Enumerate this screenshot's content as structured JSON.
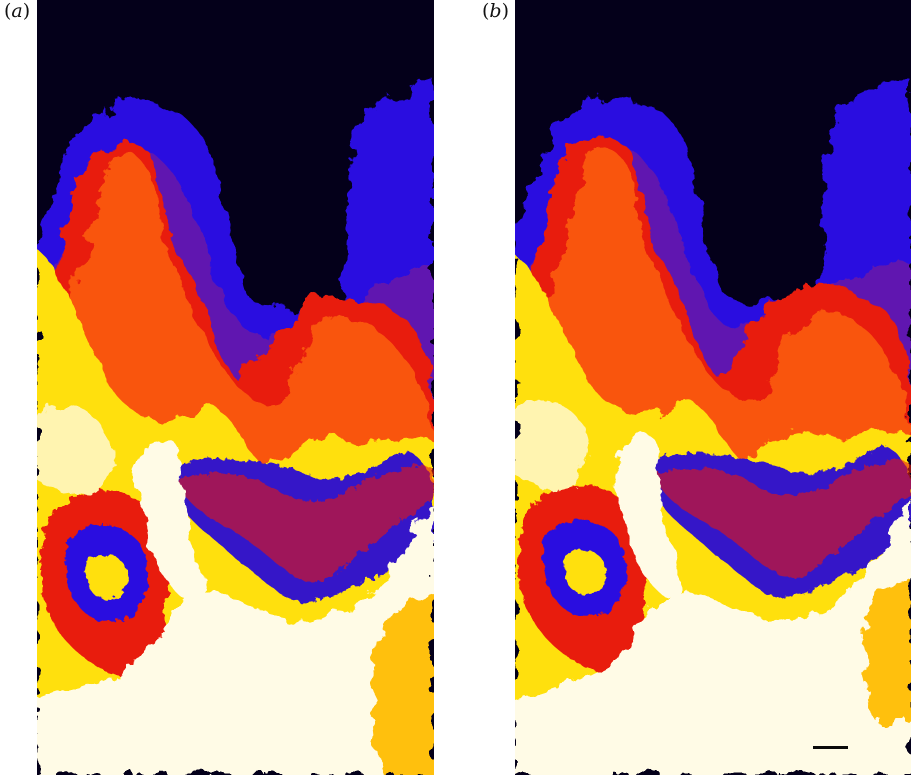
{
  "panels": [
    {
      "label_open": "(",
      "label_letter": "a",
      "label_close": ")"
    },
    {
      "label_open": "(",
      "label_letter": "b",
      "label_close": ")"
    }
  ],
  "colors": {
    "background_top": "#04001a",
    "blue": "#2a10e0",
    "purple": "#6018b0",
    "red": "#e81a10",
    "orange": "#ff6a10",
    "yellow": "#ffe010",
    "pale": "#fffbe6"
  },
  "scale_bar": {
    "visible": true
  }
}
